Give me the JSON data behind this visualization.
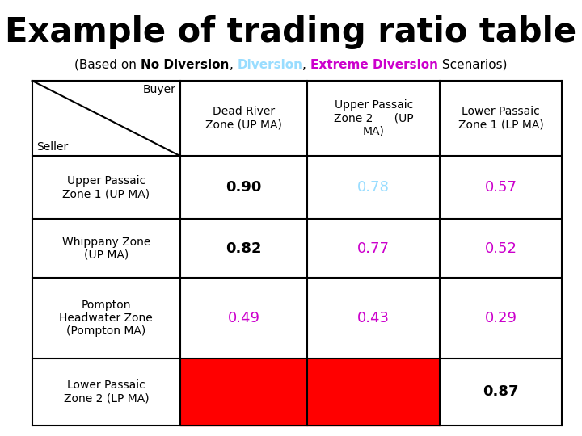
{
  "title": "Example of trading ratio table",
  "subtitle_parts": [
    {
      "text": "(Based on ",
      "color": "#000000",
      "bold": false
    },
    {
      "text": "No Diversion",
      "color": "#000000",
      "bold": true
    },
    {
      "text": ", ",
      "color": "#000000",
      "bold": false
    },
    {
      "text": "Diversion",
      "color": "#99ddff",
      "bold": true
    },
    {
      "text": ", ",
      "color": "#000000",
      "bold": false
    },
    {
      "text": "Extreme Diversion",
      "color": "#cc00cc",
      "bold": true
    },
    {
      "text": " Scenarios)",
      "color": "#000000",
      "bold": false
    }
  ],
  "col_headers": [
    "Dead River\nZone (UP MA)",
    "Upper Passaic\nZone 2      (UP\nMA)",
    "Lower Passaic\nZone 1 (LP MA)"
  ],
  "row_headers": [
    "Upper Passaic\nZone 1 (UP MA)",
    "Whippany Zone\n(UP MA)",
    "Pompton\nHeadwater Zone\n(Pompton MA)",
    "Lower Passaic\nZone 2 (LP MA)"
  ],
  "cell_values": [
    [
      "0.90",
      "0.78",
      "0.57"
    ],
    [
      "0.82",
      "0.77",
      "0.52"
    ],
    [
      "0.49",
      "0.43",
      "0.29"
    ],
    [
      "",
      "",
      "0.87"
    ]
  ],
  "cell_colors": [
    [
      "#ffffff",
      "#ffffff",
      "#ffffff"
    ],
    [
      "#ffffff",
      "#ffffff",
      "#ffffff"
    ],
    [
      "#ffffff",
      "#ffffff",
      "#ffffff"
    ],
    [
      "#ff0000",
      "#ff0000",
      "#ffffff"
    ]
  ],
  "value_colors": [
    [
      "#000000",
      "#99ddff",
      "#cc00cc"
    ],
    [
      "#000000",
      "#cc00cc",
      "#cc00cc"
    ],
    [
      "#cc00cc",
      "#cc00cc",
      "#cc00cc"
    ],
    [
      "",
      "",
      "#000000"
    ]
  ],
  "value_bold": [
    [
      true,
      false,
      false
    ],
    [
      true,
      false,
      false
    ],
    [
      false,
      false,
      false
    ],
    [
      false,
      false,
      true
    ]
  ],
  "bg_color": "#ffffff",
  "title_fontsize": 30,
  "subtitle_fontsize": 11,
  "table_fontsize": 10,
  "value_fontsize": 13
}
